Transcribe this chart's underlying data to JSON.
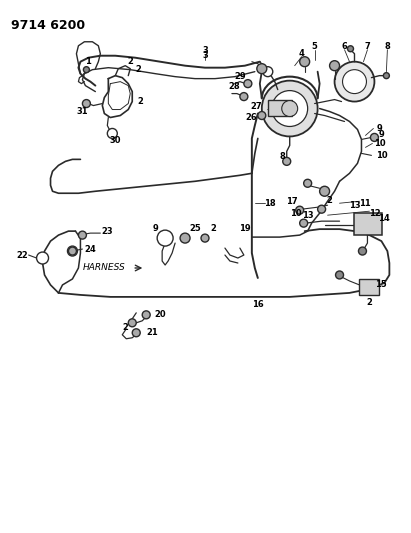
{
  "title": "9714 6200",
  "bg_color": "#ffffff",
  "line_color": "#2a2a2a",
  "text_color": "#000000",
  "figsize": [
    4.11,
    5.33
  ],
  "dpi": 100,
  "title_fontsize": 9,
  "label_fontsize": 6.0
}
